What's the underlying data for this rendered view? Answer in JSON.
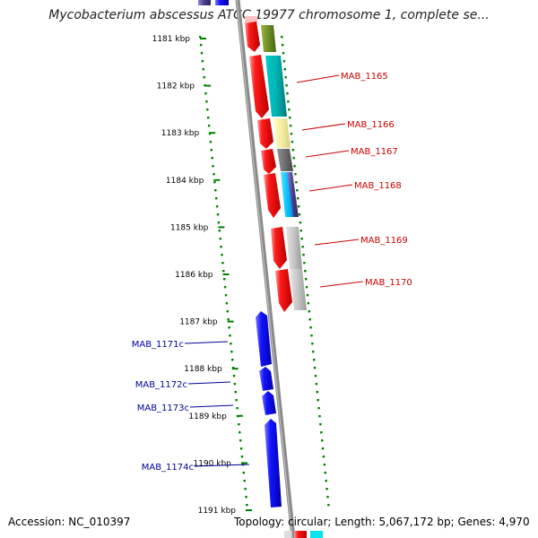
{
  "title": "Mycobacterium abscessus ATCC 19977 chromosome 1, complete se...",
  "footer": {
    "accession": "Accession: NC_010397",
    "stats": "Topology: circular; Length: 5,067,172 bp; Genes: 4,970"
  },
  "axis_ticks": [
    "1181 kbp",
    "1182 kbp",
    "1183 kbp",
    "1184 kbp",
    "1185 kbp",
    "1186 kbp",
    "1187 kbp",
    "1188 kbp",
    "1189 kbp",
    "1190 kbp",
    "1191 kbp"
  ],
  "forward_genes": [
    {
      "label": "MAB_1165",
      "color": "#008b8b"
    },
    {
      "label": "MAB_1166",
      "color": "#f0e68c"
    },
    {
      "label": "MAB_1167",
      "color": "#696969"
    },
    {
      "label": "MAB_1168",
      "color": "#00bfff"
    },
    {
      "label": "MAB_1169",
      "color": "#a9a9a9"
    },
    {
      "label": "MAB_1170",
      "color": "#a9a9a9"
    }
  ],
  "reverse_genes": [
    {
      "label": "MAB_1171c",
      "color": "#0000ff"
    },
    {
      "label": "MAB_1172c",
      "color": "#0000ff"
    },
    {
      "label": "MAB_1173c",
      "color": "#0000ff"
    },
    {
      "label": "MAB_1174c",
      "color": "#0000ff"
    }
  ],
  "colors": {
    "forward_label": "#cc0000",
    "reverse_label": "#000099",
    "cds": "#ff0000",
    "backbone": "#888888",
    "tick": "#008000"
  }
}
